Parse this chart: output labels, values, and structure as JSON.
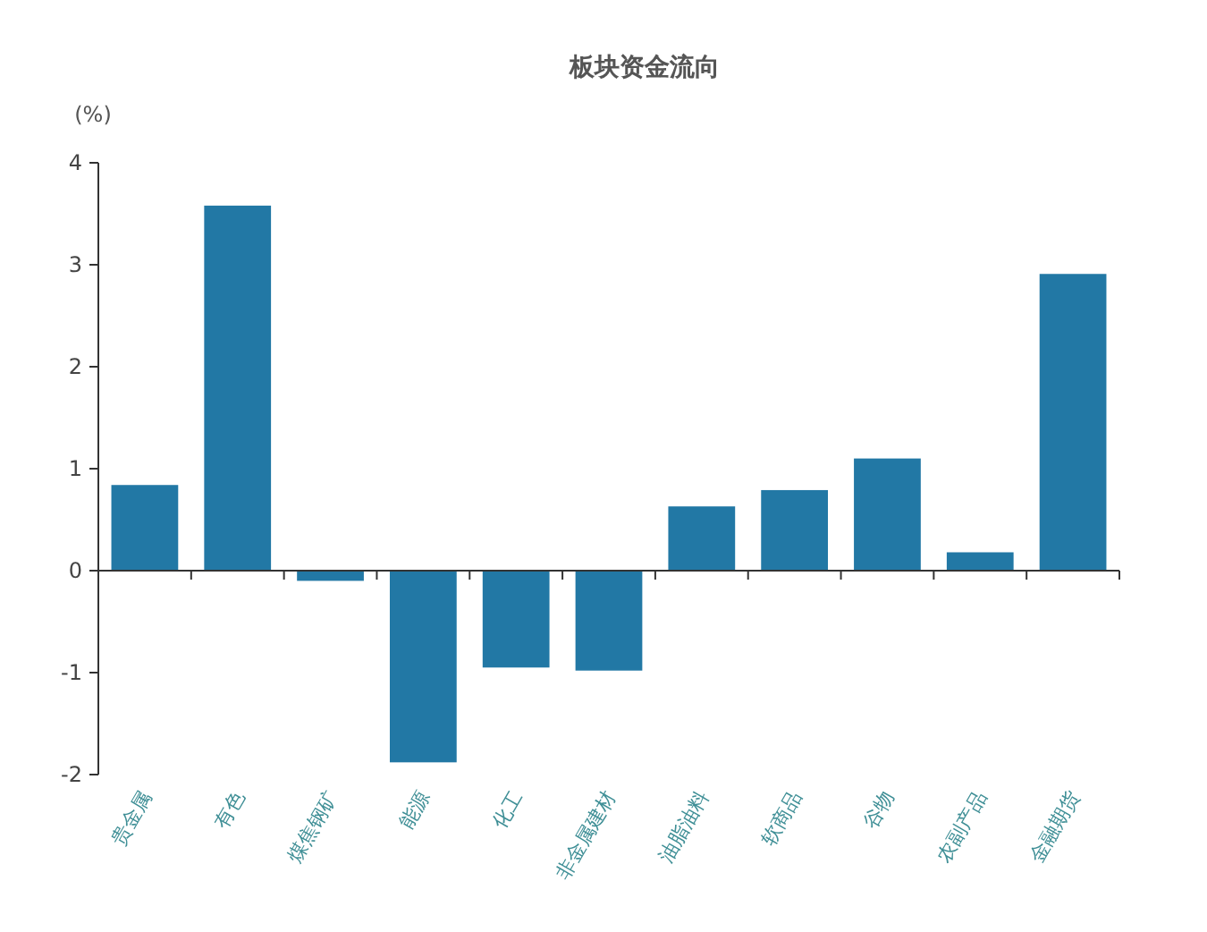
{
  "chart_data": {
    "type": "bar",
    "title": "板块资金流向",
    "ylabel": "(%)",
    "categories": [
      "贵金属",
      "有色",
      "煤焦钢矿",
      "能源",
      "化工",
      "非金属建材",
      "油脂油料",
      "软商品",
      "谷物",
      "农副产品",
      "金融期货"
    ],
    "values": [
      0.84,
      3.58,
      -0.1,
      -1.88,
      -0.95,
      -0.98,
      0.63,
      0.79,
      1.1,
      0.18,
      2.91
    ],
    "color": "#2278a5",
    "ylim": [
      -2,
      4
    ],
    "yticks": [
      -2,
      -1,
      0,
      1,
      2,
      3,
      4
    ]
  }
}
